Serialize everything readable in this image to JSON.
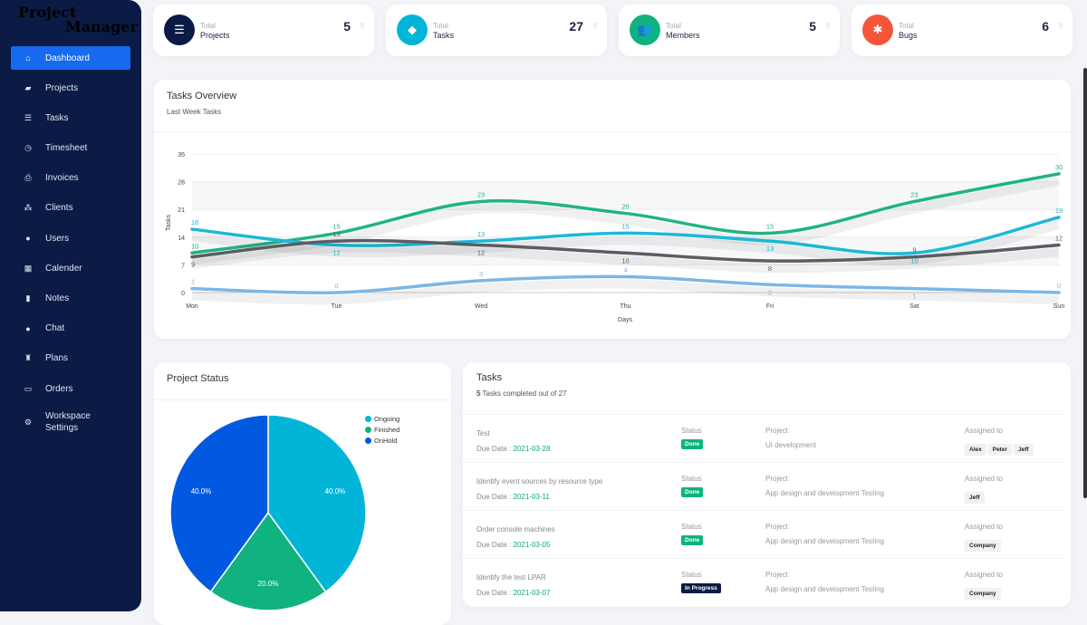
{
  "app": {
    "logo_line1": "Project",
    "logo_line2": "Manager"
  },
  "sidebar": {
    "items": [
      {
        "label": "Dashboard",
        "icon": "home-icon",
        "glyph": "⌂",
        "active": true
      },
      {
        "label": "Projects",
        "icon": "briefcase-icon",
        "glyph": "▰"
      },
      {
        "label": "Tasks",
        "icon": "list-icon",
        "glyph": "☰"
      },
      {
        "label": "Timesheet",
        "icon": "clock-icon",
        "glyph": "◷"
      },
      {
        "label": "Invoices",
        "icon": "printer-icon",
        "glyph": "⎙"
      },
      {
        "label": "Clients",
        "icon": "sitemap-icon",
        "glyph": "⁂"
      },
      {
        "label": "Users",
        "icon": "user-icon",
        "glyph": "●"
      },
      {
        "label": "Calender",
        "icon": "calendar-icon",
        "glyph": "▦"
      },
      {
        "label": "Notes",
        "icon": "note-icon",
        "glyph": "▮"
      },
      {
        "label": "Chat",
        "icon": "chat-icon",
        "glyph": "●"
      },
      {
        "label": "Plans",
        "icon": "trophy-icon",
        "glyph": "♜"
      },
      {
        "label": "Orders",
        "icon": "inbox-icon",
        "glyph": "▭"
      },
      {
        "label": "Workspace Settings",
        "icon": "gears-icon",
        "glyph": "⚙"
      }
    ]
  },
  "stats": [
    {
      "label1": "Total",
      "label2": "Projects",
      "value": "5",
      "icon": "list-icon",
      "glyph": "☰",
      "color": "#0b1b45"
    },
    {
      "label1": "Total",
      "label2": "Tasks",
      "value": "27",
      "icon": "tag-icon",
      "glyph": "◆",
      "color": "#00b5d8"
    },
    {
      "label1": "Total",
      "label2": "Members",
      "value": "5",
      "icon": "users-icon",
      "glyph": "👥",
      "color": "#10b27f"
    },
    {
      "label1": "Total",
      "label2": "Bugs",
      "value": "6",
      "icon": "bug-icon",
      "glyph": "✱",
      "color": "#f5563a"
    }
  ],
  "overview": {
    "title": "Tasks Overview",
    "subtitle": "Last Week Tasks"
  },
  "chart_data": {
    "type": "line",
    "categories": [
      "Mon",
      "Tue",
      "Wed",
      "Thu",
      "Fri",
      "Sat",
      "Sun"
    ],
    "xlabel": "Days",
    "ylabel": "Tasks",
    "ylim": [
      0,
      35
    ],
    "yticks": [
      0,
      7,
      14,
      21,
      28,
      35
    ],
    "grid": true,
    "series": [
      {
        "values": [
          10,
          15,
          23,
          20,
          15,
          23,
          30
        ],
        "color": "#1fb482"
      },
      {
        "values": [
          16,
          12,
          13,
          15,
          13,
          10,
          19
        ],
        "color": "#1cb8d8"
      },
      {
        "values": [
          9,
          13,
          12,
          10,
          8,
          9,
          12
        ],
        "color": "#5b5d63"
      },
      {
        "values": [
          1,
          0,
          3,
          4,
          2,
          1,
          0
        ],
        "color": "#7db6e6"
      }
    ]
  },
  "project_status": {
    "title": "Project Status",
    "chart_data": {
      "type": "pie",
      "slices": [
        {
          "name": "Ongoing",
          "value": 40,
          "label": "40.0%",
          "color": "#00b5d8"
        },
        {
          "name": "Finished",
          "value": 20,
          "label": "20.0%",
          "color": "#10b27f"
        },
        {
          "name": "OnHold",
          "value": 40,
          "label": "40.0%",
          "color": "#0059e0"
        }
      ]
    }
  },
  "tasks": {
    "title": "Tasks",
    "completed": "5",
    "summary": "Tasks completed out of 27",
    "status_label": "Status",
    "project_label": "Project",
    "assigned_label": "Assigned to",
    "due_label": "Due Date : ",
    "rows": [
      {
        "name": "Test",
        "due": "2021-03-28",
        "status": "Done",
        "status_color": "#10b27f",
        "project": "UI development",
        "assignees": [
          "Alex",
          "Peter",
          "Jeff"
        ]
      },
      {
        "name": "Identify event sources by resource type",
        "due": "2021-03-11",
        "status": "Done",
        "status_color": "#10b27f",
        "project": "App design and development Testing",
        "assignees": [
          "Jeff"
        ]
      },
      {
        "name": "Order console machines",
        "due": "2021-03-05",
        "status": "Done",
        "status_color": "#10b27f",
        "project": "App design and development Testing",
        "assignees": [
          "Company"
        ]
      },
      {
        "name": "Identify the test LPAR",
        "due": "2021-03-07",
        "status": "In Progress",
        "status_color": "#0b1b45",
        "project": "App design and development Testing",
        "assignees": [
          "Company"
        ]
      }
    ]
  }
}
